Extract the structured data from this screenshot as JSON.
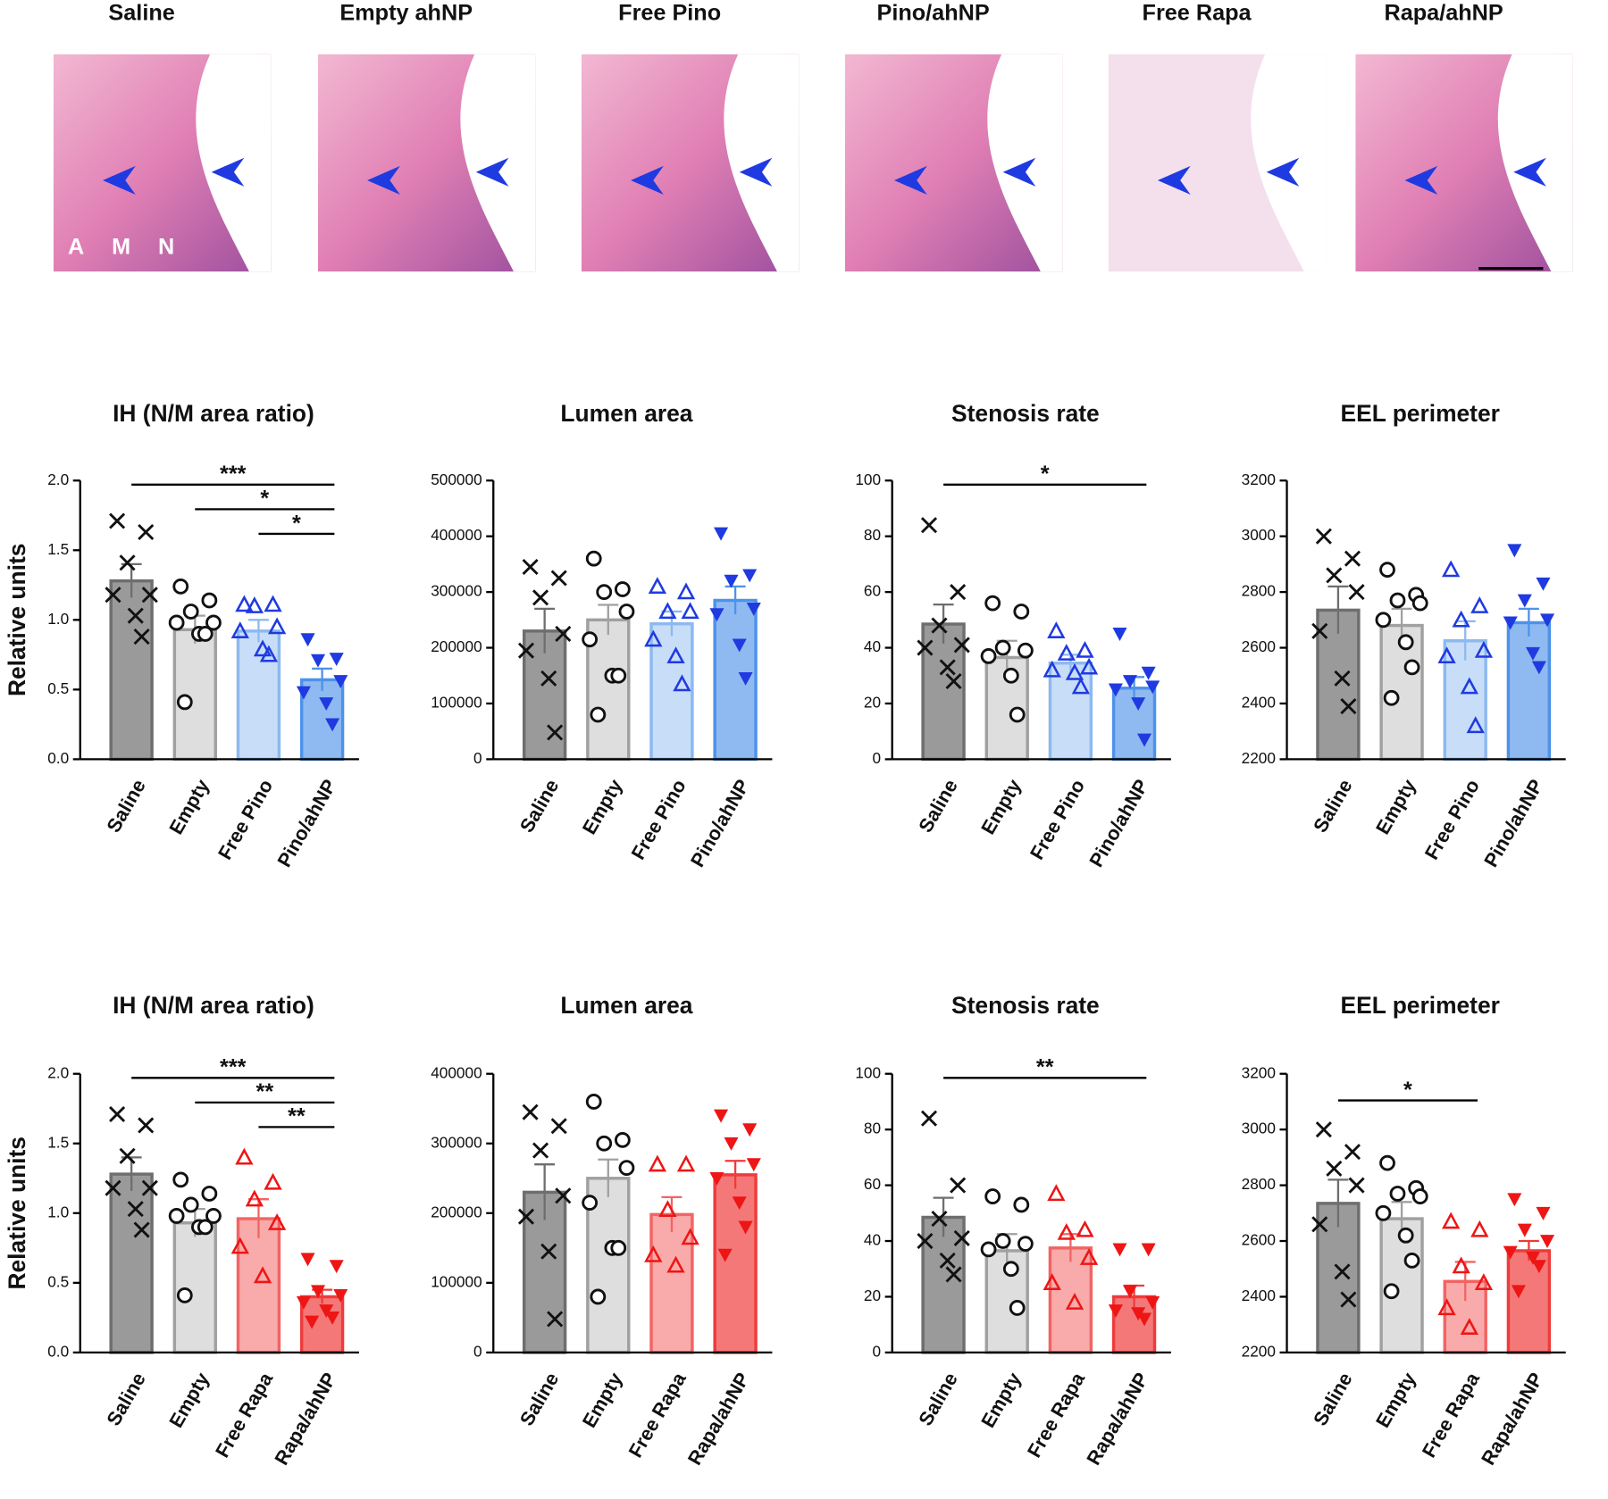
{
  "histology": {
    "panels": [
      "Saline",
      "Empty ahNP",
      "Free Pino",
      "Pino/ahNP",
      "Free Rapa",
      "Rapa/ahNP"
    ],
    "tissue_labels": [
      "A",
      "M",
      "N"
    ]
  },
  "chart_data": [
    {
      "type": "bar",
      "title": "IH (N/M area ratio)",
      "ylabel": "Relative units",
      "categories": [
        "Saline",
        "Empty",
        "Free Pino",
        "Pino/ahNP"
      ],
      "values": [
        1.28,
        0.93,
        0.92,
        0.57
      ],
      "errors": [
        0.12,
        0.1,
        0.08,
        0.08
      ],
      "points": [
        [
          1.71,
          1.63,
          1.41,
          1.18,
          1.18,
          1.03,
          0.88
        ],
        [
          1.24,
          1.14,
          1.06,
          0.98,
          0.98,
          0.9,
          0.9,
          0.41
        ],
        [
          1.11,
          1.11,
          1.1,
          0.95,
          0.92,
          0.79,
          0.75
        ],
        [
          0.86,
          0.72,
          0.71,
          0.56,
          0.48,
          0.4,
          0.25
        ]
      ],
      "markers": [
        "x",
        "circle",
        "triangle",
        "triangle-down"
      ],
      "bar_colors": [
        "#9a9a9a",
        "#dedede",
        "#c8ddf7",
        "#8fbaf1"
      ],
      "edge_colors": [
        "#6e6e6e",
        "#a0a0a0",
        "#8cb9f0",
        "#4d92ea"
      ],
      "marker_colors": [
        "#111111",
        "#111111",
        "#1f3ae0",
        "#1f3ae0"
      ],
      "ylim": [
        0,
        2
      ],
      "yticks": [
        {
          "value": 0,
          "label": "0.0"
        },
        0.5,
        {
          "value": 1,
          "label": "1.0"
        },
        1.5,
        {
          "value": 2,
          "label": "2.0"
        }
      ],
      "significance": [
        {
          "from": 0,
          "to": 3,
          "label": "***"
        },
        {
          "from": 1,
          "to": 3,
          "label": "*"
        },
        {
          "from": 2,
          "to": 3,
          "label": "*"
        }
      ]
    },
    {
      "type": "bar",
      "title": "Lumen area",
      "categories": [
        "Saline",
        "Empty",
        "Free Pino",
        "Pino/ahNP"
      ],
      "values": [
        230000,
        250000,
        243000,
        285000
      ],
      "errors": [
        40000,
        27000,
        22000,
        25000
      ],
      "points": [
        [
          345000,
          325000,
          290000,
          225000,
          195000,
          145000,
          48000
        ],
        [
          360000,
          305000,
          300000,
          265000,
          215000,
          150000,
          150000,
          80000
        ],
        [
          310000,
          300000,
          265000,
          265000,
          215000,
          185000,
          135000
        ],
        [
          405000,
          330000,
          320000,
          270000,
          260000,
          205000,
          145000
        ]
      ],
      "markers": [
        "x",
        "circle",
        "triangle",
        "triangle-down"
      ],
      "bar_colors": [
        "#9a9a9a",
        "#dedede",
        "#c8ddf7",
        "#8fbaf1"
      ],
      "edge_colors": [
        "#6e6e6e",
        "#a0a0a0",
        "#8cb9f0",
        "#4d92ea"
      ],
      "marker_colors": [
        "#111111",
        "#111111",
        "#1f3ae0",
        "#1f3ae0"
      ],
      "ylim": [
        0,
        500000
      ],
      "yticks": [
        0,
        100000,
        200000,
        300000,
        400000,
        500000
      ],
      "significance": []
    },
    {
      "type": "bar",
      "title": "Stenosis rate",
      "categories": [
        "Saline",
        "Empty",
        "Free Pino",
        "Pino/ahNP"
      ],
      "values": [
        48.5,
        36.5,
        34.5,
        25.5
      ],
      "errors": [
        7,
        6,
        3,
        4
      ],
      "points": [
        [
          84,
          60,
          48,
          41,
          40,
          33,
          28
        ],
        [
          56,
          53,
          40,
          39,
          37,
          30,
          16
        ],
        [
          46,
          39,
          38,
          33,
          32,
          31,
          26
        ],
        [
          45,
          31,
          28,
          26,
          25,
          20,
          7
        ]
      ],
      "markers": [
        "x",
        "circle",
        "triangle",
        "triangle-down"
      ],
      "bar_colors": [
        "#9a9a9a",
        "#dedede",
        "#c8ddf7",
        "#8fbaf1"
      ],
      "edge_colors": [
        "#6e6e6e",
        "#a0a0a0",
        "#8cb9f0",
        "#4d92ea"
      ],
      "marker_colors": [
        "#111111",
        "#111111",
        "#1f3ae0",
        "#1f3ae0"
      ],
      "ylim": [
        0,
        100
      ],
      "yticks": [
        0,
        20,
        40,
        60,
        80,
        100
      ],
      "significance": [
        {
          "from": 0,
          "to": 3,
          "label": "*"
        }
      ]
    },
    {
      "type": "bar",
      "title": "EEL perimeter",
      "categories": [
        "Saline",
        "Empty",
        "Free Pino",
        "Pino/ahNP"
      ],
      "values": [
        2735,
        2680,
        2625,
        2690
      ],
      "errors": [
        85,
        60,
        70,
        50
      ],
      "points": [
        [
          3000,
          2920,
          2860,
          2800,
          2660,
          2490,
          2390
        ],
        [
          2880,
          2790,
          2770,
          2760,
          2700,
          2620,
          2530,
          2420
        ],
        [
          2880,
          2750,
          2700,
          2590,
          2570,
          2460,
          2320
        ],
        [
          2950,
          2830,
          2770,
          2700,
          2690,
          2580,
          2530
        ]
      ],
      "markers": [
        "x",
        "circle",
        "triangle",
        "triangle-down"
      ],
      "bar_colors": [
        "#9a9a9a",
        "#dedede",
        "#c8ddf7",
        "#8fbaf1"
      ],
      "edge_colors": [
        "#6e6e6e",
        "#a0a0a0",
        "#8cb9f0",
        "#4d92ea"
      ],
      "marker_colors": [
        "#111111",
        "#111111",
        "#1f3ae0",
        "#1f3ae0"
      ],
      "ylim": [
        2200,
        3200
      ],
      "yticks": [
        2200,
        2400,
        2600,
        2800,
        3000,
        3200
      ],
      "significance": []
    },
    {
      "type": "bar",
      "title": "IH (N/M area ratio)",
      "ylabel": "Relative units",
      "categories": [
        "Saline",
        "Empty",
        "Free Rapa",
        "Rapa/ahNP"
      ],
      "values": [
        1.28,
        0.93,
        0.96,
        0.4
      ],
      "errors": [
        0.12,
        0.1,
        0.14,
        0.05
      ],
      "points": [
        [
          1.71,
          1.63,
          1.41,
          1.18,
          1.18,
          1.03,
          0.88
        ],
        [
          1.24,
          1.14,
          1.06,
          0.98,
          0.98,
          0.9,
          0.9,
          0.41
        ],
        [
          1.4,
          1.22,
          1.1,
          0.93,
          0.76,
          0.55
        ],
        [
          0.67,
          0.62,
          0.44,
          0.41,
          0.36,
          0.3,
          0.25,
          0.22
        ]
      ],
      "markers": [
        "x",
        "circle",
        "triangle",
        "triangle-down"
      ],
      "bar_colors": [
        "#9a9a9a",
        "#dedede",
        "#f9aaaa",
        "#f57878"
      ],
      "edge_colors": [
        "#6e6e6e",
        "#a0a0a0",
        "#f26464",
        "#ee3b3b"
      ],
      "marker_colors": [
        "#111111",
        "#111111",
        "#ee1515",
        "#ee1515"
      ],
      "ylim": [
        0,
        2
      ],
      "yticks": [
        {
          "value": 0,
          "label": "0.0"
        },
        0.5,
        {
          "value": 1,
          "label": "1.0"
        },
        1.5,
        {
          "value": 2,
          "label": "2.0"
        }
      ],
      "significance": [
        {
          "from": 0,
          "to": 3,
          "label": "***"
        },
        {
          "from": 1,
          "to": 3,
          "label": "**"
        },
        {
          "from": 2,
          "to": 3,
          "label": "**"
        }
      ]
    },
    {
      "type": "bar",
      "title": "Lumen area",
      "categories": [
        "Saline",
        "Empty",
        "Free Rapa",
        "Rapa/ahNP"
      ],
      "values": [
        230000,
        250000,
        198000,
        255000
      ],
      "errors": [
        40000,
        27000,
        25000,
        20000
      ],
      "points": [
        [
          345000,
          325000,
          290000,
          225000,
          195000,
          145000,
          48000
        ],
        [
          360000,
          305000,
          300000,
          265000,
          215000,
          150000,
          150000,
          80000
        ],
        [
          270000,
          270000,
          205000,
          165000,
          140000,
          125000
        ],
        [
          340000,
          320000,
          300000,
          270000,
          250000,
          215000,
          180000,
          140000
        ]
      ],
      "markers": [
        "x",
        "circle",
        "triangle",
        "triangle-down"
      ],
      "bar_colors": [
        "#9a9a9a",
        "#dedede",
        "#f9aaaa",
        "#f57878"
      ],
      "edge_colors": [
        "#6e6e6e",
        "#a0a0a0",
        "#f26464",
        "#ee3b3b"
      ],
      "marker_colors": [
        "#111111",
        "#111111",
        "#ee1515",
        "#ee1515"
      ],
      "ylim": [
        0,
        400000
      ],
      "yticks": [
        0,
        100000,
        200000,
        300000,
        400000
      ],
      "significance": []
    },
    {
      "type": "bar",
      "title": "Stenosis rate",
      "categories": [
        "Saline",
        "Empty",
        "Free Rapa",
        "Rapa/ahNP"
      ],
      "values": [
        48.5,
        36.5,
        37.5,
        20
      ],
      "errors": [
        7,
        6,
        5,
        4
      ],
      "points": [
        [
          84,
          60,
          48,
          41,
          40,
          33,
          28
        ],
        [
          56,
          53,
          40,
          39,
          37,
          30,
          16
        ],
        [
          57,
          44,
          43,
          34,
          25,
          18
        ],
        [
          37,
          37,
          22,
          18,
          15,
          14,
          12
        ]
      ],
      "markers": [
        "x",
        "circle",
        "triangle",
        "triangle-down"
      ],
      "bar_colors": [
        "#9a9a9a",
        "#dedede",
        "#f9aaaa",
        "#f57878"
      ],
      "edge_colors": [
        "#6e6e6e",
        "#a0a0a0",
        "#f26464",
        "#ee3b3b"
      ],
      "marker_colors": [
        "#111111",
        "#111111",
        "#ee1515",
        "#ee1515"
      ],
      "ylim": [
        0,
        100
      ],
      "yticks": [
        0,
        20,
        40,
        60,
        80,
        100
      ],
      "significance": [
        {
          "from": 0,
          "to": 3,
          "label": "**"
        }
      ]
    },
    {
      "type": "bar",
      "title": "EEL perimeter",
      "categories": [
        "Saline",
        "Empty",
        "Free Rapa",
        "Rapa/ahNP"
      ],
      "values": [
        2735,
        2680,
        2455,
        2565
      ],
      "errors": [
        85,
        60,
        70,
        35
      ],
      "points": [
        [
          3000,
          2920,
          2860,
          2800,
          2660,
          2490,
          2390
        ],
        [
          2880,
          2790,
          2770,
          2760,
          2700,
          2620,
          2530,
          2420
        ],
        [
          2670,
          2640,
          2510,
          2450,
          2360,
          2290
        ],
        [
          2750,
          2700,
          2640,
          2600,
          2560,
          2540,
          2510,
          2420
        ]
      ],
      "markers": [
        "x",
        "circle",
        "triangle",
        "triangle-down"
      ],
      "bar_colors": [
        "#9a9a9a",
        "#dedede",
        "#f9aaaa",
        "#f57878"
      ],
      "edge_colors": [
        "#6e6e6e",
        "#a0a0a0",
        "#f26464",
        "#ee3b3b"
      ],
      "marker_colors": [
        "#111111",
        "#111111",
        "#ee1515",
        "#ee1515"
      ],
      "ylim": [
        2200,
        3200
      ],
      "yticks": [
        2200,
        2400,
        2600,
        2800,
        3000,
        3200
      ],
      "significance": [
        {
          "from": 0,
          "to": 2,
          "label": "*"
        }
      ]
    }
  ]
}
